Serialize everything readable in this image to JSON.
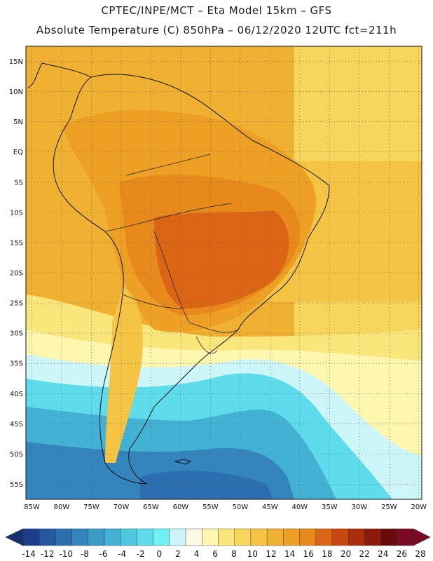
{
  "header": {
    "line1": "CPTEC/INPE/MCT –  Eta Model 15km – GFS",
    "line2": "Absolute Temperature (C) 850hPa – 06/12/2020 12UTC fct=211h"
  },
  "map": {
    "lat_labels": [
      "15N",
      "10N",
      "5N",
      "EQ",
      "5S",
      "10S",
      "15S",
      "20S",
      "25S",
      "30S",
      "35S",
      "40S",
      "45S",
      "50S",
      "55S"
    ],
    "lon_labels": [
      "85W",
      "80W",
      "75W",
      "70W",
      "65W",
      "60W",
      "55W",
      "50W",
      "45W",
      "40W",
      "35W",
      "30W",
      "25W",
      "20W"
    ],
    "grid": true
  },
  "colorbar": {
    "labels": [
      "-14",
      "-12",
      "-10",
      "-8",
      "-6",
      "-4",
      "-2",
      "0",
      "2",
      "4",
      "6",
      "8",
      "10",
      "12",
      "14",
      "16",
      "18",
      "20",
      "22",
      "24",
      "26",
      "28"
    ],
    "colors": [
      "#1e3c8c",
      "#2658a0",
      "#2c6fb0",
      "#3485bd",
      "#3a9bc8",
      "#42b1d3",
      "#4ec8e0",
      "#5fdcec",
      "#6ff0f5",
      "#cdf6fb",
      "#fff8e6",
      "#fff6b0",
      "#fbe67c",
      "#f8d65e",
      "#f5c444",
      "#f0b132",
      "#eea025",
      "#e8891b",
      "#db6515",
      "#c84710",
      "#aa2d0c",
      "#8a1a0a",
      "#6a0a0a",
      "#7a0a24"
    ],
    "under_color": "#17306e",
    "over_color": "#7a0a24"
  }
}
